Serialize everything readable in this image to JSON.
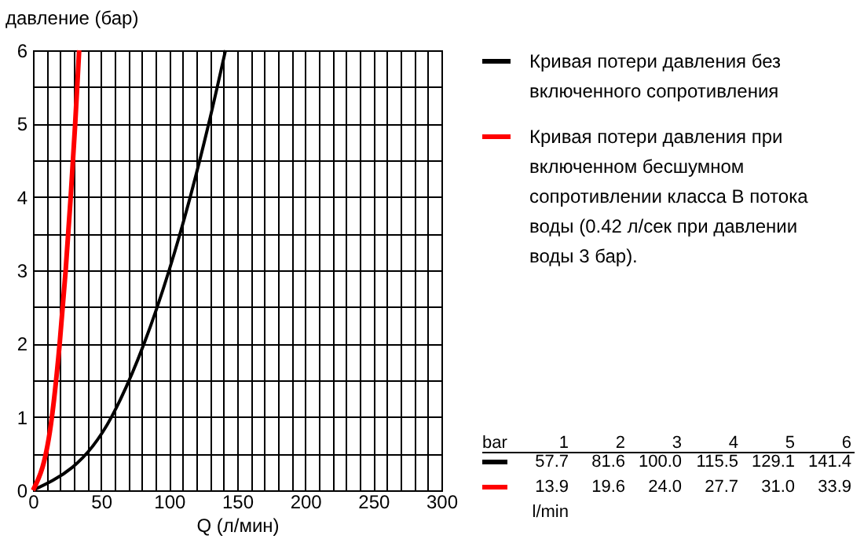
{
  "chart_data": {
    "type": "line",
    "xlabel": "Q (л/мин)",
    "ylabel": "давление (бар)",
    "xlim": [
      0,
      300
    ],
    "ylim": [
      0,
      6
    ],
    "xticks": [
      0,
      {
        "value": 10,
        "label": null
      },
      {
        "value": 20,
        "label": null
      },
      {
        "value": 30,
        "label": null
      },
      {
        "value": 40,
        "label": null
      },
      50,
      {
        "value": 60,
        "label": null
      },
      {
        "value": 70,
        "label": null
      },
      {
        "value": 80,
        "label": null
      },
      {
        "value": 90,
        "label": null
      },
      100,
      {
        "value": 110,
        "label": null
      },
      {
        "value": 120,
        "label": null
      },
      {
        "value": 130,
        "label": null
      },
      {
        "value": 140,
        "label": null
      },
      150,
      {
        "value": 160,
        "label": null
      },
      {
        "value": 170,
        "label": null
      },
      {
        "value": 180,
        "label": null
      },
      {
        "value": 190,
        "label": null
      },
      200,
      {
        "value": 210,
        "label": null
      },
      {
        "value": 220,
        "label": null
      },
      {
        "value": 230,
        "label": null
      },
      {
        "value": 240,
        "label": null
      },
      250,
      {
        "value": 260,
        "label": null
      },
      {
        "value": 270,
        "label": null
      },
      {
        "value": 280,
        "label": null
      },
      {
        "value": 290,
        "label": null
      },
      300
    ],
    "yticks": [
      0,
      {
        "value": 0.5,
        "label": null
      },
      1,
      {
        "value": 1.5,
        "label": null
      },
      2,
      {
        "value": 2.5,
        "label": null
      },
      3,
      {
        "value": 3.5,
        "label": null
      },
      4,
      {
        "value": 4.5,
        "label": null
      },
      5,
      {
        "value": 5.5,
        "label": null
      },
      6
    ],
    "grid": true,
    "legend": "top right",
    "annotations": [
      "bar",
      "1",
      "2",
      "3",
      "4",
      "5",
      "6",
      "57.7",
      "81.6",
      "100.0",
      "115.5",
      "129.1",
      "141.4",
      "13.9",
      "19.6",
      "24.0",
      "27.7",
      "31.0",
      "33.9",
      "l/min"
    ],
    "series": [
      {
        "name": "Кривая потери давления без включенного сопротивления",
        "color": "#000000",
        "x": [
          0,
          57.7,
          81.6,
          100.0,
          115.5,
          129.1,
          141.4
        ],
        "values": [
          0,
          1,
          2,
          3,
          4,
          5,
          6
        ]
      },
      {
        "name": "Кривая потери давления при включенном бесшумном сопротивлении класса В потока воды (0.42 л/сек при давлении воды 3 бар).",
        "color": "#ff0000",
        "x": [
          0,
          13.9,
          19.6,
          24.0,
          27.7,
          31.0,
          33.9
        ],
        "values": [
          0,
          1,
          2,
          3,
          4,
          5,
          6
        ]
      }
    ]
  }
}
